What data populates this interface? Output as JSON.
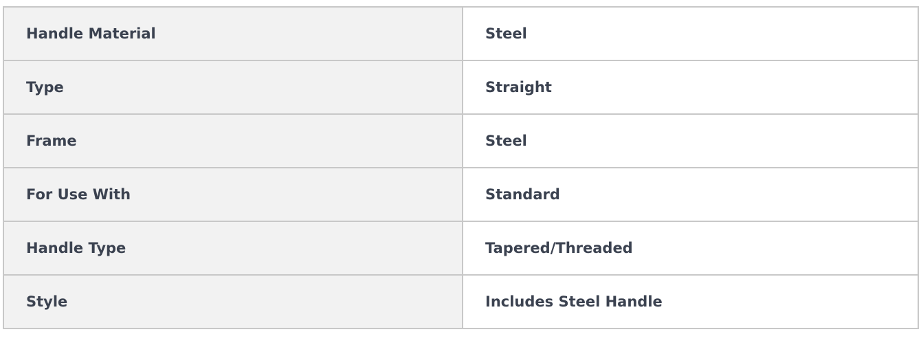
{
  "specs": [
    {
      "label": "Handle Material",
      "value": "Steel"
    },
    {
      "label": "Type",
      "value": "Straight"
    },
    {
      "label": "Frame",
      "value": "Steel"
    },
    {
      "label": "For Use With",
      "value": "Standard"
    },
    {
      "label": "Handle Type",
      "value": "Tapered/Threaded"
    },
    {
      "label": "Style",
      "value": "Includes Steel Handle"
    }
  ]
}
